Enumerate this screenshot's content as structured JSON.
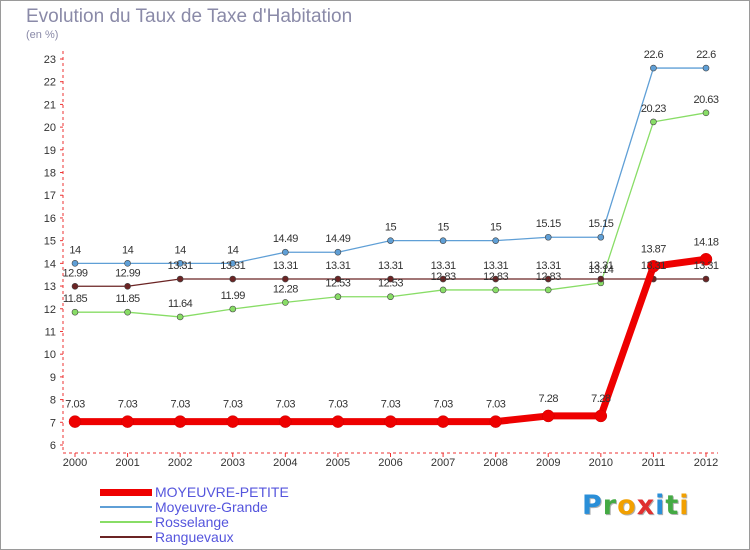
{
  "title": "Evolution du Taux de Taxe d'Habitation",
  "subtitle": "(en %)",
  "logo": {
    "letters": [
      {
        "ch": "P",
        "color": "#2a8fd8"
      },
      {
        "ch": "r",
        "color": "#44aa44"
      },
      {
        "ch": "o",
        "color": "#f2a000"
      },
      {
        "ch": "x",
        "color": "#e03030"
      },
      {
        "ch": "i",
        "color": "#2a8fd8"
      },
      {
        "ch": "t",
        "color": "#44aa44"
      },
      {
        "ch": "i",
        "color": "#f2a000"
      }
    ]
  },
  "chart_data": {
    "type": "line",
    "title": "Evolution du Taux de Taxe d'Habitation",
    "subtitle": "(en %)",
    "xlabel": "",
    "ylabel": "",
    "categories": [
      "2000",
      "2001",
      "2002",
      "2003",
      "2004",
      "2005",
      "2006",
      "2007",
      "2008",
      "2009",
      "2010",
      "2011",
      "2012"
    ],
    "ylim": [
      6,
      23
    ],
    "yticks": [
      6,
      7,
      8,
      9,
      10,
      11,
      12,
      13,
      14,
      15,
      16,
      17,
      18,
      19,
      20,
      21,
      22,
      23
    ],
    "grid": false,
    "legend_position": "bottom-left",
    "series": [
      {
        "name": "MOYEUVRE-PETITE",
        "color": "#ee0000",
        "bold": true,
        "values": [
          7.03,
          7.03,
          7.03,
          7.03,
          7.03,
          7.03,
          7.03,
          7.03,
          7.03,
          7.28,
          7.28,
          13.87,
          14.18
        ],
        "labels": [
          "7.03",
          "7.03",
          "7.03",
          "7.03",
          "7.03",
          "7.03",
          "7.03",
          "7.03",
          "7.03",
          "7.28",
          "7.28",
          "13.87",
          "14.18"
        ]
      },
      {
        "name": "Moyeuvre-Grande",
        "color": "#5f9fd6",
        "bold": false,
        "values": [
          14,
          14,
          14,
          14,
          14.49,
          14.49,
          15,
          15,
          15,
          15.15,
          15.15,
          22.6,
          22.6
        ],
        "labels": [
          "14",
          "14",
          "14",
          "14",
          "14.49",
          "14.49",
          "15",
          "15",
          "15",
          "15.15",
          "15.15",
          "22.6",
          "22.6"
        ]
      },
      {
        "name": "Rosselange",
        "color": "#88dd66",
        "bold": false,
        "values": [
          11.85,
          11.85,
          11.64,
          11.99,
          12.28,
          12.53,
          12.53,
          12.83,
          12.83,
          12.83,
          13.14,
          20.23,
          20.63
        ],
        "labels": [
          "11.85",
          "11.85",
          "11.64",
          "11.99",
          "12.28",
          "12.53",
          "12.53",
          "12.83",
          "12.83",
          "12.83",
          "13.14",
          "20.23",
          "20.63"
        ]
      },
      {
        "name": "Ranguevaux",
        "color": "#6b2424",
        "bold": false,
        "values": [
          12.99,
          12.99,
          13.31,
          13.31,
          13.31,
          13.31,
          13.31,
          13.31,
          13.31,
          13.31,
          13.31,
          13.31,
          13.31
        ],
        "labels": [
          "12.99",
          "12.99",
          "13.31",
          "13.31",
          "13.31",
          "13.31",
          "13.31",
          "13.31",
          "13.31",
          "13.31",
          "13.31",
          "13.31",
          "13.31"
        ]
      }
    ]
  }
}
